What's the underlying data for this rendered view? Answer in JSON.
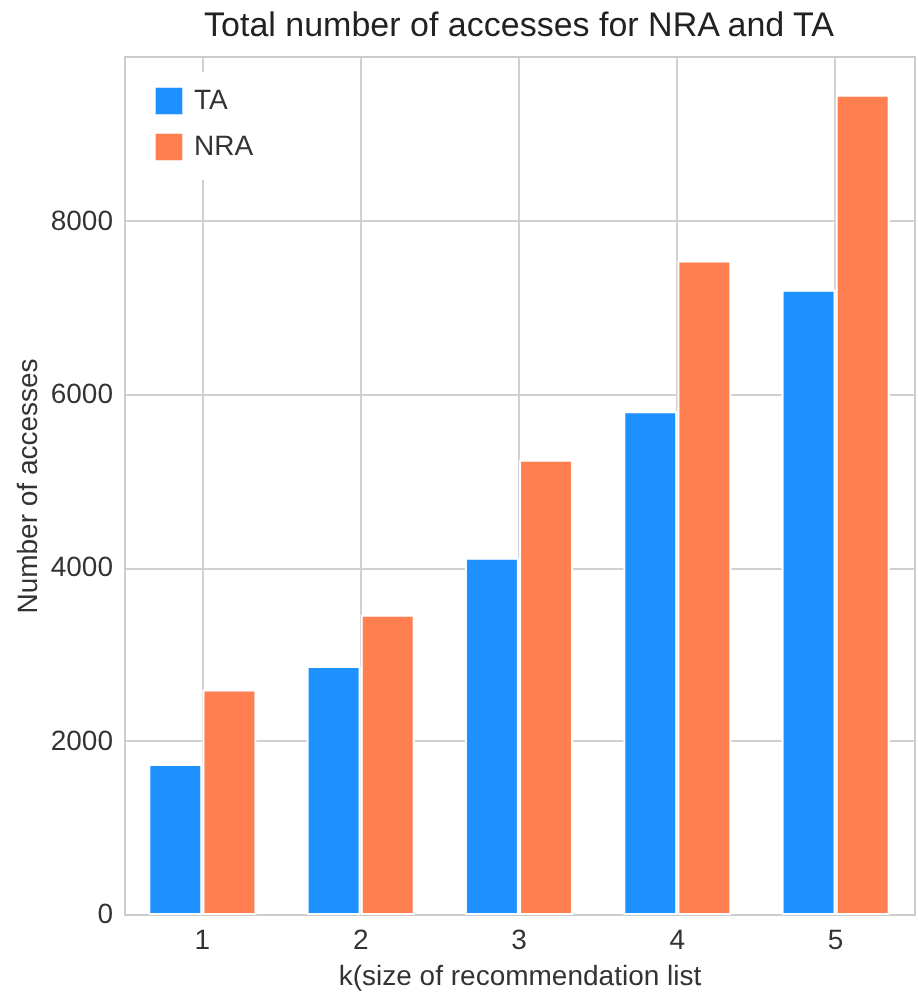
{
  "chart_data": {
    "type": "bar",
    "title": "Total number of accesses for NRA and TA",
    "xlabel": "k(size of recommendation list",
    "ylabel": "Number of accesses",
    "categories": [
      "1",
      "2",
      "3",
      "4",
      "5"
    ],
    "series": [
      {
        "name": "TA",
        "color": "#1e90ff",
        "values": [
          1720,
          2850,
          4100,
          5790,
          7190
        ]
      },
      {
        "name": "NRA",
        "color": "#ff7f50",
        "values": [
          2580,
          3440,
          5230,
          7530,
          9440
        ]
      }
    ],
    "ylim": [
      0,
      9900
    ],
    "yticks": [
      0,
      2000,
      4000,
      6000,
      8000
    ],
    "grid": true,
    "legend": "top left"
  }
}
